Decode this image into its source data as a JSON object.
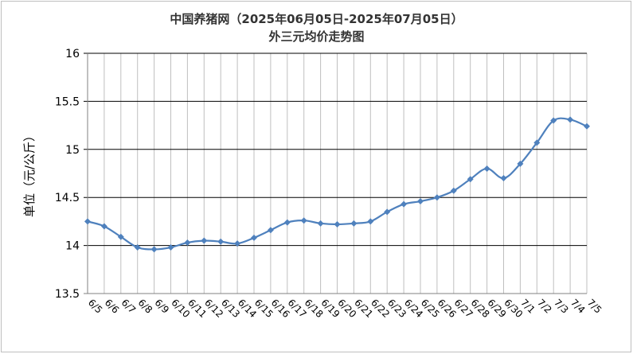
{
  "chart_data": {
    "type": "line",
    "title": "中国养猪网（2025年06月05日-2025年07月05日）",
    "subtitle": "外三元均价走势图",
    "xlabel": "",
    "ylabel": "单位（元/公斤）",
    "ylim": [
      13.5,
      16
    ],
    "yticks": [
      "13.5",
      "14",
      "14.5",
      "15",
      "15.5",
      "16"
    ],
    "grid": true,
    "categories": [
      "6/5",
      "6/6",
      "6/7",
      "6/8",
      "6/9",
      "6/10",
      "6/11",
      "6/12",
      "6/13",
      "6/14",
      "6/15",
      "6/16",
      "6/17",
      "6/18",
      "6/19",
      "6/20",
      "6/21",
      "6/22",
      "6/23",
      "6/24",
      "6/25",
      "6/26",
      "6/27",
      "6/28",
      "6/29",
      "6/30",
      "7/1",
      "7/2",
      "7/3",
      "7/4",
      "7/5"
    ],
    "series": [
      {
        "values": [
          14.25,
          14.2,
          14.09,
          13.98,
          13.96,
          13.98,
          14.03,
          14.05,
          14.04,
          14.02,
          14.08,
          14.16,
          14.24,
          14.26,
          14.23,
          14.22,
          14.23,
          14.25,
          14.35,
          14.43,
          14.46,
          14.5,
          14.57,
          14.69,
          14.8,
          14.7,
          14.85,
          15.07,
          15.3,
          15.31,
          15.24
        ],
        "color": "#4f81bd"
      }
    ]
  }
}
